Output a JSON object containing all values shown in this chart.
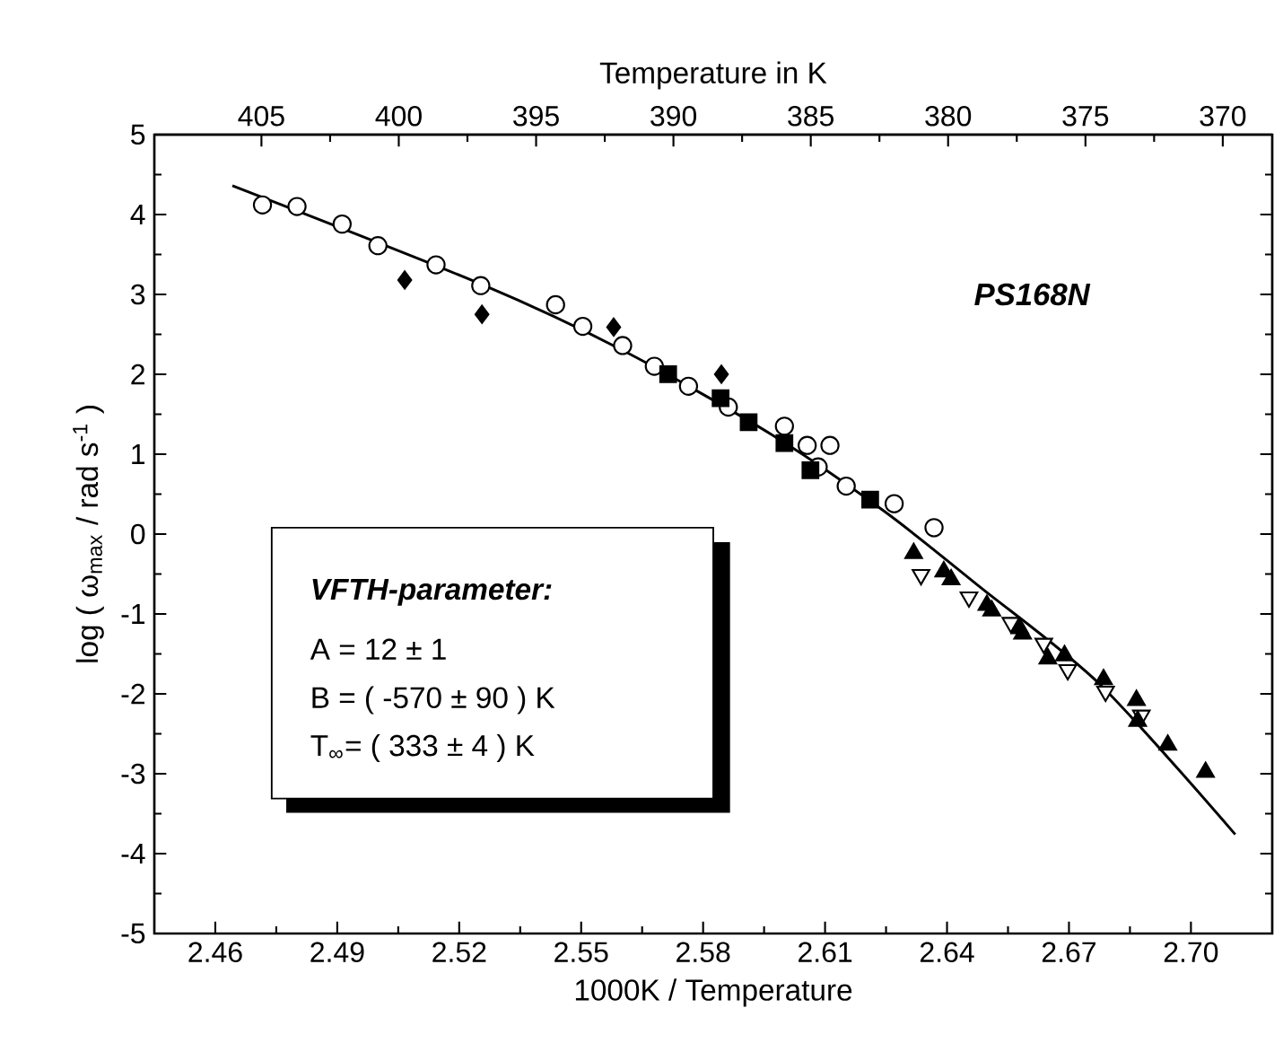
{
  "chart_data": {
    "type": "scatter",
    "xlabel": "1000K / Temperature",
    "ylabel": "log ( ω$_{max}$ / rad s$^{-1}$ )",
    "x2label": "Temperature in K",
    "xlim": [
      2.445,
      2.72
    ],
    "xticks": [
      2.46,
      2.49,
      2.52,
      2.55,
      2.58,
      2.61,
      2.64,
      2.67,
      {
        "value": 2.7,
        "label": "2.70"
      }
    ],
    "x2lim": [
      408.9,
      368.2
    ],
    "x2ticks": [
      405,
      400,
      395,
      390,
      385,
      380,
      375,
      370
    ],
    "ylim": [
      -5,
      5
    ],
    "yticks": [
      -5,
      -4,
      -3,
      -2,
      -1,
      0,
      1,
      2,
      3,
      4,
      5
    ],
    "annotations": [
      "PS168N",
      "VFTH-parameter:",
      "A  =  12 ± 1",
      "B  =  ( -570 ± 90 ) K",
      "T$_{∞}$=  ( 333 ± 4 ) K"
    ],
    "series": [
      {
        "type": "line",
        "color": "#000000",
        "marker": "none",
        "line_style": "solid",
        "x": [
          2.4642,
          2.5253,
          2.5602,
          2.5967,
          2.6247,
          2.6483,
          2.6778,
          2.7109
        ],
        "values": [
          4.36,
          3.13,
          2.3,
          1.25,
          0.28,
          -0.67,
          -1.89,
          -3.76
        ]
      },
      {
        "color": "#ffffff",
        "marker": "circle",
        "x": [
          2.4716,
          2.4801,
          2.4912,
          2.5,
          2.5143,
          2.5253,
          2.5437,
          2.5504,
          2.5602,
          2.568,
          2.5764,
          2.5862,
          2.6,
          2.6056,
          2.6112,
          2.6083,
          2.6152,
          2.627,
          2.6368
        ],
        "values": [
          4.12,
          4.1,
          3.88,
          3.61,
          3.37,
          3.11,
          2.87,
          2.6,
          2.36,
          2.1,
          1.85,
          1.59,
          1.35,
          1.11,
          1.11,
          0.84,
          0.6,
          0.38,
          0.08
        ]
      },
      {
        "color": "#000000",
        "marker": "diamond",
        "x": [
          2.5066,
          2.5256,
          2.558,
          2.5845
        ],
        "values": [
          3.18,
          2.75,
          2.59,
          2.0
        ]
      },
      {
        "color": "#000000",
        "marker": "square",
        "x": [
          2.5714,
          2.5843,
          2.5912,
          2.6,
          2.6064,
          2.6211
        ],
        "values": [
          2.0,
          1.7,
          1.4,
          1.14,
          0.8,
          0.43
        ]
      },
      {
        "color": "#ffffff",
        "marker": "triangle-down",
        "x": [
          2.6336,
          2.6454,
          2.6557,
          2.6638,
          2.6697,
          2.679,
          2.6878
        ],
        "values": [
          -0.51,
          -0.79,
          -1.11,
          -1.37,
          -1.7,
          -1.97,
          -2.27
        ]
      },
      {
        "color": "#000000",
        "marker": "triangle",
        "x": [
          2.6318,
          2.6392,
          2.641,
          2.6498,
          2.651,
          2.6579,
          2.6586,
          2.6648,
          2.6689,
          2.6785,
          2.6866,
          2.6869,
          2.6943,
          2.7036
        ],
        "values": [
          -0.24,
          -0.47,
          -0.57,
          -0.89,
          -0.96,
          -1.18,
          -1.25,
          -1.56,
          -1.52,
          -1.82,
          -2.08,
          -2.34,
          -2.64,
          -2.98
        ]
      }
    ]
  }
}
